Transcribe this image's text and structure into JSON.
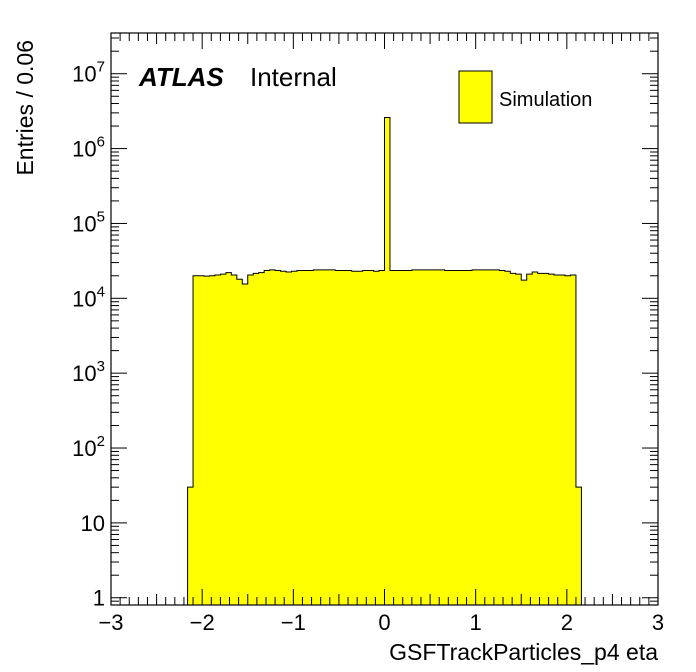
{
  "chart_data": {
    "type": "histogram",
    "xlabel": "GSFTrackParticles_p4 eta",
    "ylabel": "Entries / 0.06",
    "x_range": [
      -3,
      3
    ],
    "y_range": [
      0.8,
      35000000
    ],
    "y_scale": "log",
    "x_ticks": [
      "−3",
      "−2",
      "−1",
      "0",
      "1",
      "2",
      "3"
    ],
    "y_ticks": [
      {
        "value": 1,
        "base": "1",
        "exp": ""
      },
      {
        "value": 10,
        "base": "10",
        "exp": ""
      },
      {
        "value": 100,
        "base": "10",
        "exp": "2"
      },
      {
        "value": 1000,
        "base": "10",
        "exp": "3"
      },
      {
        "value": 10000,
        "base": "10",
        "exp": "4"
      },
      {
        "value": 100000,
        "base": "10",
        "exp": "5"
      },
      {
        "value": 1000000,
        "base": "10",
        "exp": "6"
      },
      {
        "value": 10000000,
        "base": "10",
        "exp": "7"
      }
    ],
    "fill_color": "#ffff00",
    "line_color": "#000000",
    "bin_width": 0.06,
    "series": [
      {
        "name": "Simulation",
        "bin_low_edges": [
          -2.16,
          -2.1,
          -2.04,
          -1.98,
          -1.92,
          -1.86,
          -1.8,
          -1.74,
          -1.68,
          -1.62,
          -1.56,
          -1.5,
          -1.44,
          -1.38,
          -1.32,
          -1.26,
          -1.2,
          -1.14,
          -1.08,
          -1.02,
          -0.96,
          -0.9,
          -0.84,
          -0.78,
          -0.72,
          -0.66,
          -0.6,
          -0.54,
          -0.48,
          -0.42,
          -0.36,
          -0.3,
          -0.24,
          -0.18,
          -0.12,
          -0.06,
          0.0,
          0.06,
          0.12,
          0.18,
          0.24,
          0.3,
          0.36,
          0.42,
          0.48,
          0.54,
          0.6,
          0.66,
          0.72,
          0.78,
          0.84,
          0.9,
          0.96,
          1.02,
          1.08,
          1.14,
          1.2,
          1.26,
          1.32,
          1.38,
          1.44,
          1.5,
          1.56,
          1.62,
          1.68,
          1.74,
          1.8,
          1.86,
          1.92,
          1.98,
          2.04,
          2.1
        ],
        "values": [
          30,
          20000,
          20000,
          19800,
          20000,
          20500,
          21000,
          22000,
          20500,
          18000,
          15500,
          20500,
          21500,
          22000,
          23500,
          24000,
          23500,
          23000,
          22500,
          23000,
          23500,
          23500,
          23500,
          24000,
          24000,
          24000,
          24000,
          23500,
          23500,
          23500,
          23000,
          23000,
          23500,
          23500,
          23000,
          23500,
          2600000,
          23500,
          23500,
          23500,
          23500,
          24000,
          24000,
          24000,
          24000,
          24000,
          24000,
          23500,
          23500,
          23500,
          23500,
          23500,
          24000,
          24000,
          24000,
          24000,
          24000,
          23500,
          23000,
          21500,
          21000,
          17500,
          21000,
          22500,
          21500,
          21500,
          21000,
          20500,
          20500,
          20000,
          20500,
          30
        ]
      }
    ],
    "legend": {
      "position": "top-right",
      "entries": [
        "Simulation"
      ]
    },
    "annotations": {
      "atlas": "ATLAS",
      "status": "Internal"
    }
  }
}
